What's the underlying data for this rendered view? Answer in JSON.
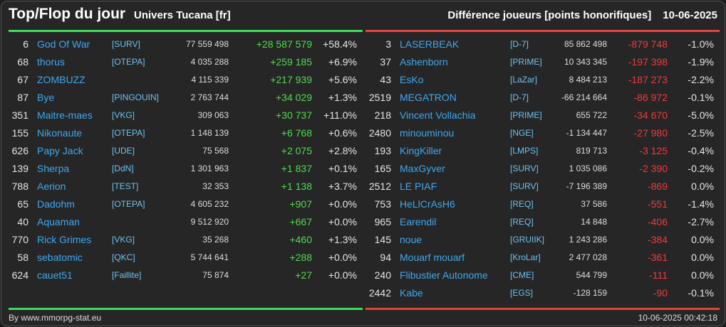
{
  "header": {
    "title": "Top/Flop du jour",
    "universe": "Univers Tucana [fr]",
    "subtitle": "Différence joueurs [points honorifiques]",
    "date": "10-06-2025"
  },
  "colors": {
    "top": "#3ddc5a",
    "flop": "#e0453e",
    "name": "#3ea8f0"
  },
  "top": [
    {
      "rank": "6",
      "name": "God Of War",
      "ally": "[SURV]",
      "points": "77 559 498",
      "diff": "+28 587 579",
      "pct": "+58.4%"
    },
    {
      "rank": "68",
      "name": "thorus",
      "ally": "[OTEPA]",
      "points": "4 035 288",
      "diff": "+259 185",
      "pct": "+6.9%"
    },
    {
      "rank": "67",
      "name": "ZOMBUZZ",
      "ally": "",
      "points": "4 115 339",
      "diff": "+217 939",
      "pct": "+5.6%"
    },
    {
      "rank": "87",
      "name": "Bye",
      "ally": "[PINGOUIN]",
      "points": "2 763 744",
      "diff": "+34 029",
      "pct": "+1.3%"
    },
    {
      "rank": "351",
      "name": "Maitre-maes",
      "ally": "[VKG]",
      "points": "309 063",
      "diff": "+30 737",
      "pct": "+11.0%"
    },
    {
      "rank": "155",
      "name": "Nikonaute",
      "ally": "[OTEPA]",
      "points": "1 148 139",
      "diff": "+6 768",
      "pct": "+0.6%"
    },
    {
      "rank": "626",
      "name": "Papy Jack",
      "ally": "[UDE]",
      "points": "75 568",
      "diff": "+2 075",
      "pct": "+2.8%"
    },
    {
      "rank": "139",
      "name": "Sherpa",
      "ally": "[DdN]",
      "points": "1 301 963",
      "diff": "+1 837",
      "pct": "+0.1%"
    },
    {
      "rank": "788",
      "name": "Aerion",
      "ally": "[TEST]",
      "points": "32 353",
      "diff": "+1 138",
      "pct": "+3.7%"
    },
    {
      "rank": "65",
      "name": "Dadohm",
      "ally": "[OTEPA]",
      "points": "4 605 232",
      "diff": "+907",
      "pct": "+0.0%"
    },
    {
      "rank": "40",
      "name": "Aquaman",
      "ally": "",
      "points": "9 512 920",
      "diff": "+667",
      "pct": "+0.0%"
    },
    {
      "rank": "770",
      "name": "Rick Grimes",
      "ally": "[VKG]",
      "points": "35 268",
      "diff": "+460",
      "pct": "+1.3%"
    },
    {
      "rank": "58",
      "name": "sebatomic",
      "ally": "[QKC]",
      "points": "5 744 641",
      "diff": "+288",
      "pct": "+0.0%"
    },
    {
      "rank": "624",
      "name": "cauet51",
      "ally": "[Faillite]",
      "points": "75 874",
      "diff": "+27",
      "pct": "+0.0%"
    }
  ],
  "flop": [
    {
      "rank": "3",
      "name": "LASERBEAK",
      "ally": "[D-7]",
      "points": "85 862 498",
      "diff": "-879 748",
      "pct": "-1.0%"
    },
    {
      "rank": "37",
      "name": "Ashenborn",
      "ally": "[PRIME]",
      "points": "10 343 345",
      "diff": "-197 398",
      "pct": "-1.9%"
    },
    {
      "rank": "43",
      "name": "EsKo",
      "ally": "[LaZar]",
      "points": "8 484 213",
      "diff": "-187 273",
      "pct": "-2.2%"
    },
    {
      "rank": "2519",
      "name": "MEGATRON",
      "ally": "[D-7]",
      "points": "-66 214 664",
      "diff": "-86 972",
      "pct": "-0.1%"
    },
    {
      "rank": "218",
      "name": "Vincent Vollachia",
      "ally": "[PRIME]",
      "points": "655 722",
      "diff": "-34 670",
      "pct": "-5.0%"
    },
    {
      "rank": "2480",
      "name": "minouminou",
      "ally": "[NGE]",
      "points": "-1 134 447",
      "diff": "-27 980",
      "pct": "-2.5%"
    },
    {
      "rank": "193",
      "name": "KingKiller",
      "ally": "[LMPS]",
      "points": "819 713",
      "diff": "-3 125",
      "pct": "-0.4%"
    },
    {
      "rank": "165",
      "name": "MaxGyver",
      "ally": "[SURV]",
      "points": "1 035 086",
      "diff": "-2 390",
      "pct": "-0.2%"
    },
    {
      "rank": "2512",
      "name": "LE PIAF",
      "ally": "[SURV]",
      "points": "-7 196 389",
      "diff": "-869",
      "pct": "0.0%"
    },
    {
      "rank": "753",
      "name": "HeLlCrAsH6",
      "ally": "[REQ]",
      "points": "37 586",
      "diff": "-551",
      "pct": "-1.4%"
    },
    {
      "rank": "965",
      "name": "Earendil",
      "ally": "[REQ]",
      "points": "14 848",
      "diff": "-406",
      "pct": "-2.7%"
    },
    {
      "rank": "145",
      "name": "noue",
      "ally": "[GRUIIK]",
      "points": "1 243 286",
      "diff": "-384",
      "pct": "0.0%"
    },
    {
      "rank": "94",
      "name": "Mouarf mouarf",
      "ally": "[KroLar]",
      "points": "2 477 028",
      "diff": "-361",
      "pct": "0.0%"
    },
    {
      "rank": "240",
      "name": "Flibustier Autonome",
      "ally": "[CME]",
      "points": "544 799",
      "diff": "-111",
      "pct": "0.0%"
    },
    {
      "rank": "2442",
      "name": "Kabe",
      "ally": "[EGS]",
      "points": "-128 159",
      "diff": "-90",
      "pct": "-0.1%"
    }
  ],
  "footer": {
    "source": "By www.mmorpg-stat.eu",
    "timestamp": "10-06-2025 00:42:18"
  }
}
